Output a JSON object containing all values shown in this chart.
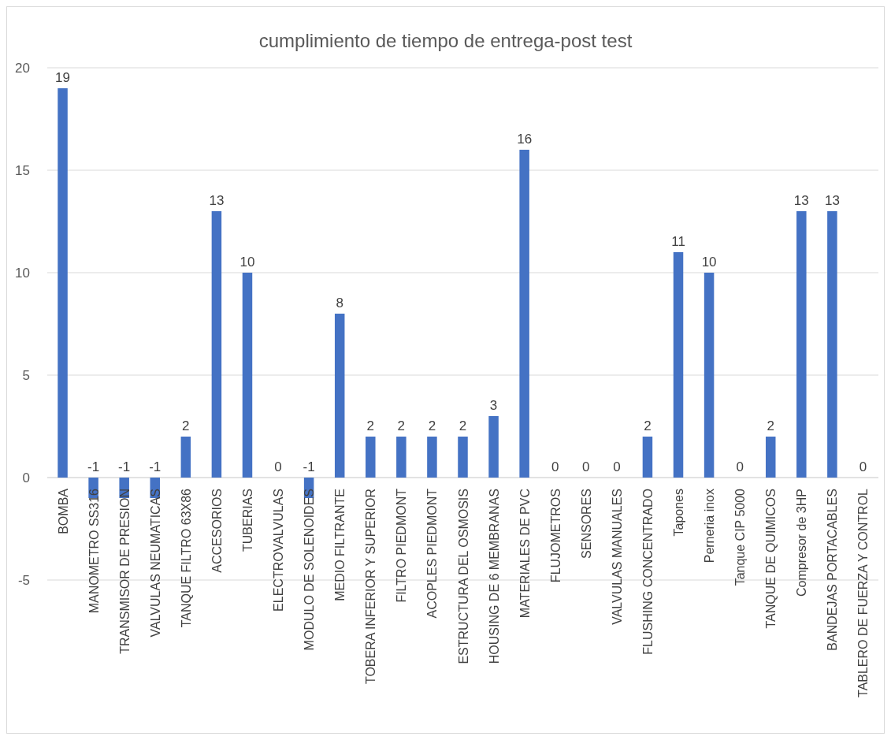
{
  "chart_data": {
    "type": "bar",
    "title": "cumplimiento de tiempo de entrega-post test",
    "categories": [
      "BOMBA",
      "MANOMETRO SS316",
      "TRANSMISOR DE PRESION",
      "VALVULAS NEUMATICAS",
      "TANQUE FILTRO 63X86",
      "ACCESORIOS",
      "TUBERIAS",
      "ELECTROVALVULAS",
      "MODULO DE SOLENOIDES",
      "MEDIO FILTRANTE",
      "TOBERA INFERIOR Y SUPERIOR",
      "FILTRO PIEDMONT",
      "ACOPLES PIEDMONT",
      "ESTRUCTURA DEL OSMOSIS",
      "HOUSING DE 6 MEMBRANAS",
      "MATERIALES DE PVC",
      "FLUJOMETROS",
      "SENSORES",
      "VALVULAS MANUALES",
      "FLUSHING CONCENTRADO",
      "Tapones",
      "Perneria inox",
      "Tanque CIP 5000",
      "TANQUE DE QUIMICOS",
      "Compresor de 3HP",
      "BANDEJAS PORTACABLES",
      "TABLERO DE FUERZA Y CONTROL"
    ],
    "values": [
      19,
      -1,
      -1,
      -1,
      2,
      13,
      10,
      0,
      -1,
      8,
      2,
      2,
      2,
      2,
      3,
      16,
      0,
      0,
      0,
      2,
      11,
      10,
      0,
      2,
      13,
      13,
      0
    ],
    "color": "#4472c4",
    "ylim": [
      -5,
      20
    ],
    "yticks": [
      -5,
      0,
      5,
      10,
      15,
      20
    ],
    "grid": "y",
    "data_labels": true
  }
}
